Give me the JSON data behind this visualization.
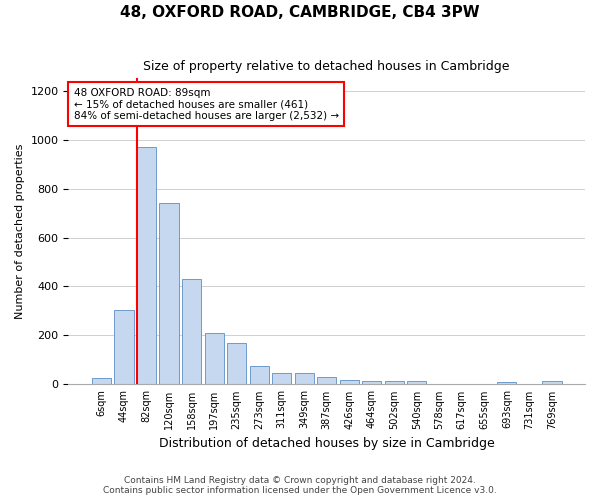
{
  "title1": "48, OXFORD ROAD, CAMBRIDGE, CB4 3PW",
  "title2": "Size of property relative to detached houses in Cambridge",
  "xlabel": "Distribution of detached houses by size in Cambridge",
  "ylabel": "Number of detached properties",
  "annotation_title": "48 OXFORD ROAD: 89sqm",
  "annotation_line1": "← 15% of detached houses are smaller (461)",
  "annotation_line2": "84% of semi-detached houses are larger (2,532) →",
  "footer1": "Contains HM Land Registry data © Crown copyright and database right 2024.",
  "footer2": "Contains public sector information licensed under the Open Government Licence v3.0.",
  "bin_labels": [
    "6sqm",
    "44sqm",
    "82sqm",
    "120sqm",
    "158sqm",
    "197sqm",
    "235sqm",
    "273sqm",
    "311sqm",
    "349sqm",
    "387sqm",
    "426sqm",
    "464sqm",
    "502sqm",
    "540sqm",
    "578sqm",
    "617sqm",
    "655sqm",
    "693sqm",
    "731sqm",
    "769sqm"
  ],
  "bar_values": [
    25,
    305,
    970,
    740,
    430,
    210,
    168,
    75,
    48,
    48,
    30,
    20,
    12,
    12,
    12,
    0,
    0,
    0,
    10,
    0,
    12
  ],
  "bar_color": "#c5d8f0",
  "bar_edge_color": "#5b8ec5",
  "vline_color": "red",
  "vline_x": 1.6,
  "ylim": [
    0,
    1250
  ],
  "yticks": [
    0,
    200,
    400,
    600,
    800,
    1000,
    1200
  ],
  "background_color": "#ffffff",
  "grid_color": "#d0d0d0",
  "title1_fontsize": 11,
  "title2_fontsize": 9,
  "xlabel_fontsize": 9,
  "ylabel_fontsize": 8,
  "footer_fontsize": 6.5,
  "tick_fontsize": 8,
  "xtick_fontsize": 7
}
